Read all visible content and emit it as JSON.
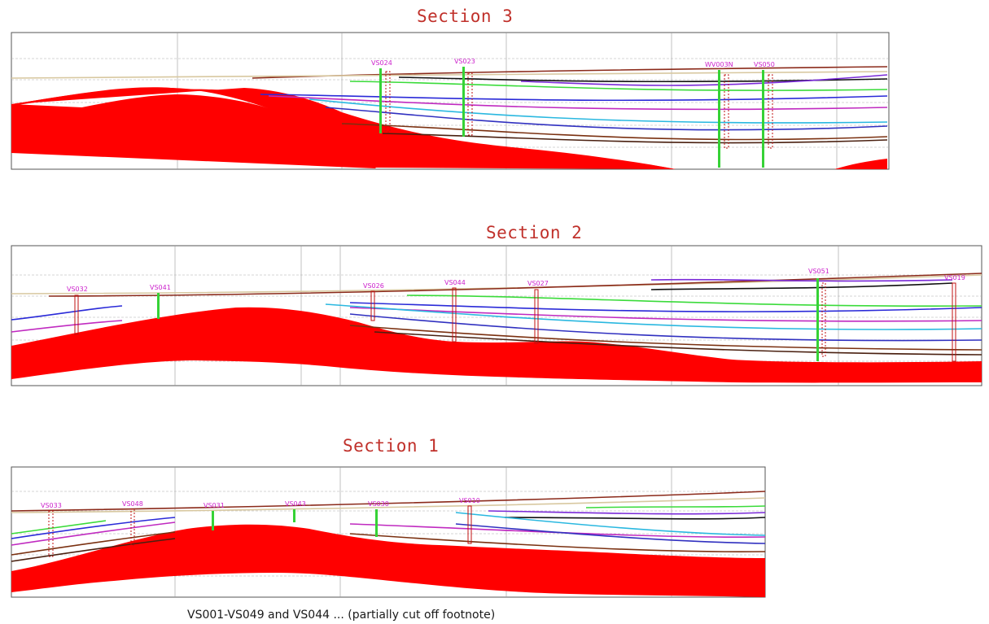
{
  "colors": {
    "title": "#c0302a",
    "bedrock": "#ff0000",
    "well_label": "#cc22cc",
    "frame": "#555555",
    "guide": "#b0b0b0"
  },
  "sections": [
    {
      "title": "Section 3",
      "wells": [
        "VS024",
        "VS023",
        "WV003N",
        "VS050"
      ]
    },
    {
      "title": "Section 2",
      "wells": [
        "VS032",
        "VS041",
        "VS026",
        "VS044",
        "VS027",
        "VS051",
        "VS019"
      ]
    },
    {
      "title": "Section 1",
      "wells": [
        "VS033",
        "VS048",
        "VS031",
        "VS043",
        "VS030",
        "VS010"
      ]
    }
  ],
  "caption": "VS001-VS049 and VS044 ... (partially cut off footnote)"
}
